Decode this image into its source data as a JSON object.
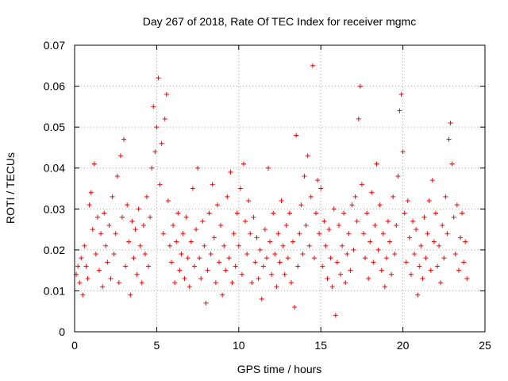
{
  "chart_data": {
    "type": "scatter",
    "title": "Day 267 of 2018, Rate Of TEC Index for receiver mgmc",
    "xlabel": "GPS time / hours",
    "ylabel": "ROTI / TECUs",
    "xlim": [
      0,
      25
    ],
    "ylim": [
      0,
      0.07
    ],
    "x_ticks": [
      0,
      5,
      10,
      15,
      20,
      25
    ],
    "x_tick_labels": [
      "0",
      "5",
      "10",
      "15",
      "20",
      "25"
    ],
    "y_ticks": [
      0,
      0.01,
      0.02,
      0.03,
      0.04,
      0.05,
      0.06,
      0.07
    ],
    "y_tick_labels": [
      "0",
      "0.01",
      "0.02",
      "0.03",
      "0.04",
      "0.05",
      "0.06",
      "0.07"
    ],
    "grid": true,
    "marker": "+",
    "color": "#ff0000",
    "series": [
      {
        "points": [
          [
            0.1,
            0.014
          ],
          [
            0.2,
            0.016
          ],
          [
            0.3,
            0.012
          ],
          [
            0.4,
            0.018
          ],
          [
            0.5,
            0.009
          ],
          [
            0.6,
            0.021
          ],
          [
            0.7,
            0.016
          ],
          [
            0.8,
            0.013
          ],
          [
            0.9,
            0.031
          ],
          [
            1.0,
            0.034
          ],
          [
            1.1,
            0.025
          ],
          [
            1.2,
            0.041
          ],
          [
            1.3,
            0.019
          ],
          [
            1.4,
            0.028
          ],
          [
            1.5,
            0.015
          ],
          [
            1.6,
            0.024
          ],
          [
            1.7,
            0.011
          ],
          [
            1.8,
            0.029
          ],
          [
            1.9,
            0.021
          ],
          [
            2.0,
            0.017
          ],
          [
            2.1,
            0.026
          ],
          [
            2.2,
            0.013
          ],
          [
            2.3,
            0.033
          ],
          [
            2.4,
            0.019
          ],
          [
            2.5,
            0.024
          ],
          [
            2.6,
            0.038
          ],
          [
            2.7,
            0.012
          ],
          [
            2.8,
            0.043
          ],
          [
            2.9,
            0.028
          ],
          [
            3.0,
            0.047
          ],
          [
            3.1,
            0.016
          ],
          [
            3.2,
            0.031
          ],
          [
            3.3,
            0.022
          ],
          [
            3.4,
            0.009
          ],
          [
            3.5,
            0.027
          ],
          [
            3.6,
            0.018
          ],
          [
            3.7,
            0.025
          ],
          [
            3.8,
            0.014
          ],
          [
            3.9,
            0.03
          ],
          [
            4.0,
            0.021
          ],
          [
            4.1,
            0.012
          ],
          [
            4.2,
            0.026
          ],
          [
            4.3,
            0.019
          ],
          [
            4.4,
            0.033
          ],
          [
            4.5,
            0.016
          ],
          [
            4.6,
            0.028
          ],
          [
            4.7,
            0.04
          ],
          [
            4.8,
            0.055
          ],
          [
            4.9,
            0.044
          ],
          [
            5.0,
            0.05
          ],
          [
            5.1,
            0.062
          ],
          [
            5.2,
            0.036
          ],
          [
            5.3,
            0.046
          ],
          [
            5.4,
            0.024
          ],
          [
            5.5,
            0.052
          ],
          [
            5.6,
            0.058
          ],
          [
            5.7,
            0.032
          ],
          [
            5.8,
            0.021
          ],
          [
            5.9,
            0.017
          ],
          [
            6.0,
            0.026
          ],
          [
            6.1,
            0.012
          ],
          [
            6.2,
            0.022
          ],
          [
            6.3,
            0.029
          ],
          [
            6.4,
            0.015
          ],
          [
            6.5,
            0.019
          ],
          [
            6.6,
            0.024
          ],
          [
            6.7,
            0.013
          ],
          [
            6.8,
            0.028
          ],
          [
            6.9,
            0.018
          ],
          [
            7.0,
            0.011
          ],
          [
            7.1,
            0.022
          ],
          [
            7.2,
            0.035
          ],
          [
            7.3,
            0.016
          ],
          [
            7.4,
            0.025
          ],
          [
            7.5,
            0.04
          ],
          [
            7.6,
            0.018
          ],
          [
            7.7,
            0.013
          ],
          [
            7.8,
            0.027
          ],
          [
            7.9,
            0.021
          ],
          [
            8.0,
            0.007
          ],
          [
            8.1,
            0.015
          ],
          [
            8.2,
            0.029
          ],
          [
            8.3,
            0.019
          ],
          [
            8.4,
            0.036
          ],
          [
            8.5,
            0.023
          ],
          [
            8.6,
            0.012
          ],
          [
            8.7,
            0.031
          ],
          [
            8.8,
            0.017
          ],
          [
            8.9,
            0.026
          ],
          [
            9.0,
            0.009
          ],
          [
            9.1,
            0.021
          ],
          [
            9.2,
            0.015
          ],
          [
            9.3,
            0.033
          ],
          [
            9.4,
            0.018
          ],
          [
            9.5,
            0.039
          ],
          [
            9.6,
            0.012
          ],
          [
            9.7,
            0.024
          ],
          [
            9.8,
            0.016
          ],
          [
            9.9,
            0.029
          ],
          [
            10.0,
            0.021
          ],
          [
            10.1,
            0.035
          ],
          [
            10.2,
            0.014
          ],
          [
            10.3,
            0.041
          ],
          [
            10.4,
            0.027
          ],
          [
            10.5,
            0.019
          ],
          [
            10.6,
            0.032
          ],
          [
            10.7,
            0.024
          ],
          [
            10.8,
            0.012
          ],
          [
            10.9,
            0.028
          ],
          [
            11.0,
            0.017
          ],
          [
            11.1,
            0.023
          ],
          [
            11.2,
            0.013
          ],
          [
            11.3,
            0.02
          ],
          [
            11.4,
            0.008
          ],
          [
            11.5,
            0.016
          ],
          [
            11.6,
            0.025
          ],
          [
            11.7,
            0.018
          ],
          [
            11.8,
            0.04
          ],
          [
            11.9,
            0.022
          ],
          [
            12.0,
            0.014
          ],
          [
            12.1,
            0.029
          ],
          [
            12.2,
            0.019
          ],
          [
            12.3,
            0.011
          ],
          [
            12.4,
            0.024
          ],
          [
            12.5,
            0.017
          ],
          [
            12.6,
            0.032
          ],
          [
            12.7,
            0.021
          ],
          [
            12.8,
            0.014
          ],
          [
            12.9,
            0.026
          ],
          [
            13.0,
            0.018
          ],
          [
            13.1,
            0.029
          ],
          [
            13.2,
            0.012
          ],
          [
            13.3,
            0.022
          ],
          [
            13.4,
            0.006
          ],
          [
            13.5,
            0.048
          ],
          [
            13.6,
            0.016
          ],
          [
            13.7,
            0.024
          ],
          [
            13.8,
            0.031
          ],
          [
            13.9,
            0.019
          ],
          [
            14.0,
            0.038
          ],
          [
            14.1,
            0.026
          ],
          [
            14.2,
            0.043
          ],
          [
            14.3,
            0.021
          ],
          [
            14.4,
            0.033
          ],
          [
            14.5,
            0.065
          ],
          [
            14.6,
            0.018
          ],
          [
            14.7,
            0.029
          ],
          [
            14.8,
            0.037
          ],
          [
            14.9,
            0.024
          ],
          [
            15.0,
            0.035
          ],
          [
            15.1,
            0.016
          ],
          [
            15.2,
            0.027
          ],
          [
            15.3,
            0.021
          ],
          [
            15.4,
            0.013
          ],
          [
            15.5,
            0.025
          ],
          [
            15.6,
            0.018
          ],
          [
            15.7,
            0.011
          ],
          [
            15.8,
            0.03
          ],
          [
            15.9,
            0.004
          ],
          [
            16.0,
            0.017
          ],
          [
            16.1,
            0.026
          ],
          [
            16.2,
            0.014
          ],
          [
            16.3,
            0.021
          ],
          [
            16.4,
            0.029
          ],
          [
            16.5,
            0.012
          ],
          [
            16.6,
            0.019
          ],
          [
            16.7,
            0.024
          ],
          [
            16.8,
            0.015
          ],
          [
            16.9,
            0.031
          ],
          [
            17.0,
            0.02
          ],
          [
            17.1,
            0.033
          ],
          [
            17.2,
            0.027
          ],
          [
            17.3,
            0.052
          ],
          [
            17.4,
            0.06
          ],
          [
            17.5,
            0.036
          ],
          [
            17.6,
            0.024
          ],
          [
            17.7,
            0.018
          ],
          [
            17.8,
            0.029
          ],
          [
            17.9,
            0.013
          ],
          [
            18.0,
            0.022
          ],
          [
            18.1,
            0.034
          ],
          [
            18.2,
            0.017
          ],
          [
            18.3,
            0.026
          ],
          [
            18.4,
            0.041
          ],
          [
            18.5,
            0.02
          ],
          [
            18.6,
            0.031
          ],
          [
            18.7,
            0.015
          ],
          [
            18.8,
            0.024
          ],
          [
            18.9,
            0.011
          ],
          [
            19.0,
            0.018
          ],
          [
            19.1,
            0.027
          ],
          [
            19.2,
            0.022
          ],
          [
            19.3,
            0.014
          ],
          [
            19.4,
            0.033
          ],
          [
            19.5,
            0.019
          ],
          [
            19.6,
            0.026
          ],
          [
            19.7,
            0.038
          ],
          [
            19.8,
            0.054
          ],
          [
            19.9,
            0.058
          ],
          [
            20.0,
            0.044
          ],
          [
            20.1,
            0.029
          ],
          [
            20.2,
            0.017
          ],
          [
            20.3,
            0.032
          ],
          [
            20.4,
            0.023
          ],
          [
            20.5,
            0.014
          ],
          [
            20.6,
            0.027
          ],
          [
            20.7,
            0.019
          ],
          [
            20.8,
            0.025
          ],
          [
            20.9,
            0.009
          ],
          [
            21.0,
            0.016
          ],
          [
            21.1,
            0.021
          ],
          [
            21.2,
            0.013
          ],
          [
            21.3,
            0.028
          ],
          [
            21.4,
            0.018
          ],
          [
            21.5,
            0.024
          ],
          [
            21.6,
            0.032
          ],
          [
            21.7,
            0.015
          ],
          [
            21.8,
            0.037
          ],
          [
            21.9,
            0.022
          ],
          [
            22.0,
            0.029
          ],
          [
            22.1,
            0.016
          ],
          [
            22.2,
            0.021
          ],
          [
            22.3,
            0.012
          ],
          [
            22.4,
            0.026
          ],
          [
            22.5,
            0.018
          ],
          [
            22.6,
            0.033
          ],
          [
            22.7,
            0.024
          ],
          [
            22.8,
            0.047
          ],
          [
            22.9,
            0.051
          ],
          [
            23.0,
            0.041
          ],
          [
            23.1,
            0.028
          ],
          [
            23.2,
            0.019
          ],
          [
            23.3,
            0.031
          ],
          [
            23.4,
            0.015
          ],
          [
            23.5,
            0.023
          ],
          [
            23.6,
            0.029
          ],
          [
            23.7,
            0.017
          ],
          [
            23.8,
            0.022
          ],
          [
            23.9,
            0.013
          ]
        ]
      }
    ]
  }
}
